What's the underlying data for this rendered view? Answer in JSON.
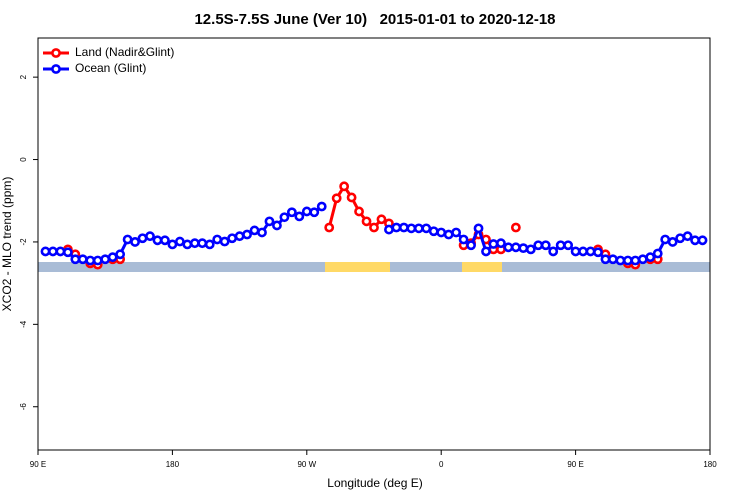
{
  "chart_data": {
    "type": "line",
    "title": "12.5S-7.5S June (Ver 10)   2015-01-01 to 2020-12-18",
    "x_label": "Longitude (deg E)",
    "y_label": "XCO2 - MLO trend (ppm)",
    "x": [
      95,
      100,
      105,
      110,
      115,
      120,
      125,
      130,
      135,
      140,
      145,
      150,
      155,
      160,
      165,
      170,
      175,
      180,
      185,
      190,
      195,
      200,
      205,
      210,
      215,
      220,
      225,
      230,
      235,
      240,
      245,
      250,
      255,
      260,
      265,
      270,
      275,
      280,
      285,
      290,
      295,
      300,
      305,
      310,
      315,
      320,
      325,
      330,
      335,
      340,
      345,
      350,
      355,
      360,
      365,
      370,
      375,
      380,
      385,
      390,
      395,
      400,
      405,
      410,
      415,
      420,
      425,
      430,
      435,
      440,
      445,
      450,
      455,
      460,
      465,
      470,
      475,
      480,
      485,
      490,
      495,
      500,
      505,
      510,
      515,
      520,
      525,
      530,
      535
    ],
    "series": [
      {
        "name": "Land (Nadir&Glint)",
        "color": "#ff0000",
        "values": [
          null,
          null,
          null,
          -2.18,
          -2.3,
          null,
          -2.52,
          -2.55,
          null,
          -2.42,
          -2.42,
          null,
          null,
          null,
          null,
          null,
          null,
          null,
          null,
          null,
          null,
          null,
          null,
          null,
          null,
          null,
          null,
          null,
          null,
          null,
          null,
          null,
          null,
          null,
          null,
          null,
          null,
          null,
          -1.65,
          -0.94,
          -0.65,
          -0.92,
          -1.26,
          -1.5,
          -1.65,
          -1.45,
          -1.55,
          null,
          null,
          null,
          null,
          null,
          null,
          null,
          null,
          null,
          -2.08,
          -2.03,
          -1.82,
          -1.94,
          -2.18,
          -2.18,
          null,
          -1.65,
          null,
          null,
          null,
          null,
          null,
          null,
          null,
          null,
          null,
          null,
          -2.18,
          -2.3,
          null,
          null,
          -2.52,
          -2.55,
          null,
          -2.42,
          -2.42,
          null,
          null,
          null,
          null,
          null,
          null
        ]
      },
      {
        "name": "Ocean (Glint)",
        "color": "#0000ff",
        "values": [
          -2.23,
          -2.23,
          -2.23,
          -2.25,
          -2.42,
          -2.42,
          -2.45,
          -2.45,
          -2.42,
          -2.37,
          -2.3,
          -1.94,
          -2.0,
          -1.91,
          -1.86,
          -1.96,
          -1.96,
          -2.06,
          -1.99,
          -2.06,
          -2.03,
          -2.03,
          -2.06,
          -1.94,
          -1.99,
          -1.91,
          -1.86,
          -1.82,
          -1.72,
          -1.77,
          -1.5,
          -1.6,
          -1.4,
          -1.28,
          -1.38,
          -1.26,
          -1.28,
          -1.14,
          null,
          null,
          null,
          null,
          null,
          null,
          null,
          null,
          -1.7,
          -1.65,
          -1.65,
          -1.67,
          -1.67,
          -1.67,
          -1.74,
          -1.77,
          -1.82,
          -1.77,
          -1.94,
          -2.08,
          -1.67,
          -2.23,
          -2.05,
          -2.03,
          -2.13,
          -2.13,
          -2.15,
          -2.18,
          -2.08,
          -2.08,
          -2.23,
          -2.08,
          -2.08,
          -2.23,
          -2.23,
          -2.23,
          -2.25,
          -2.42,
          -2.42,
          -2.45,
          -2.45,
          -2.45,
          -2.42,
          -2.37,
          -2.28,
          -1.94,
          -2.0,
          -1.91,
          -1.86,
          -1.96,
          -1.96
        ]
      }
    ],
    "xlim": [
      90,
      540
    ],
    "xticks": [
      {
        "value": 90,
        "label": "90 E"
      },
      180,
      {
        "value": 270,
        "label": "90 W"
      },
      {
        "value": 360,
        "label": "0"
      },
      {
        "value": 450,
        "label": "90 E"
      },
      {
        "value": 540,
        "label": "180"
      }
    ],
    "ylim": [
      -7.05,
      2.95
    ],
    "yticks": [
      -6,
      -4,
      -2,
      0,
      2
    ],
    "legend": "top-left"
  }
}
